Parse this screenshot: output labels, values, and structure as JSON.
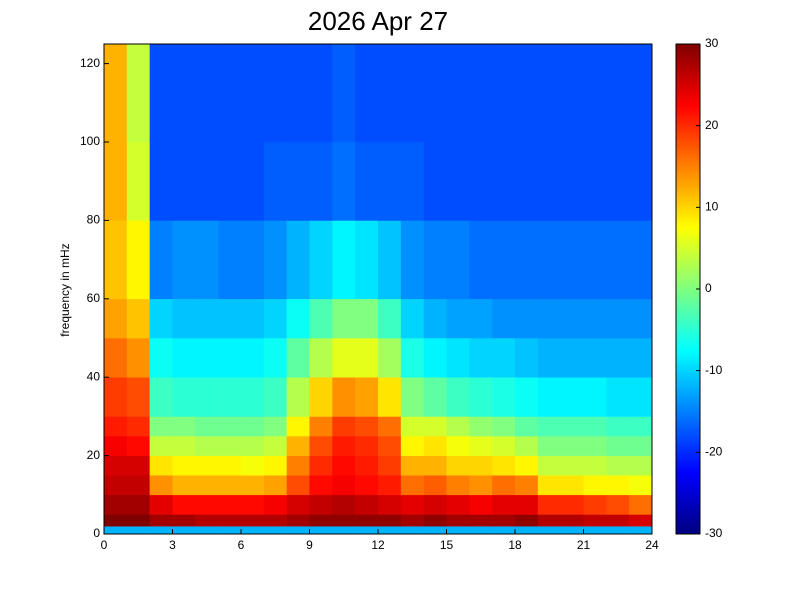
{
  "chart_data": {
    "type": "heatmap",
    "title": "2026 Apr 27",
    "ylabel": "frequency in mHz",
    "colormap": "jet",
    "x_bins": [
      0,
      1,
      2,
      3,
      4,
      5,
      6,
      7,
      8,
      9,
      10,
      11,
      12,
      13,
      14,
      15,
      16,
      17,
      18,
      19,
      20,
      21,
      22,
      23,
      24
    ],
    "y_bins": [
      0,
      2,
      5,
      10,
      15,
      20,
      25,
      30,
      40,
      50,
      60,
      80,
      100,
      125
    ],
    "values": [
      [
        -12,
        -12,
        -12,
        -12,
        -12,
        -12,
        -12,
        -12,
        -12,
        -12,
        -12,
        -12,
        -12,
        -12,
        -12,
        -12,
        -12,
        -12,
        -12,
        -12,
        -12,
        -12,
        -12,
        -12
      ],
      [
        30,
        30,
        28,
        28,
        27,
        27,
        27,
        27,
        28,
        29,
        29,
        29,
        29,
        28,
        29,
        28,
        28,
        28,
        29,
        27,
        27,
        26,
        26,
        25
      ],
      [
        28,
        28,
        24,
        22,
        22,
        22,
        22,
        23,
        25,
        26,
        27,
        26,
        25,
        24,
        25,
        24,
        23,
        24,
        24,
        20,
        20,
        19,
        18,
        16
      ],
      [
        26,
        26,
        14,
        12,
        12,
        12,
        12,
        13,
        18,
        22,
        23,
        22,
        21,
        16,
        17,
        15,
        14,
        16,
        15,
        9,
        9,
        8,
        8,
        7
      ],
      [
        25,
        25,
        9,
        8,
        8,
        8,
        7,
        8,
        15,
        20,
        22,
        21,
        19,
        12,
        12,
        10,
        10,
        9,
        8,
        4,
        4,
        4,
        3,
        3
      ],
      [
        23,
        22,
        4,
        4,
        3,
        3,
        3,
        4,
        12,
        18,
        21,
        20,
        18,
        8,
        9,
        7,
        6,
        5,
        3,
        0,
        0,
        0,
        -1,
        -1
      ],
      [
        21,
        20,
        0,
        0,
        -1,
        -1,
        -1,
        0,
        8,
        15,
        19,
        18,
        16,
        5,
        5,
        3,
        1,
        0,
        -2,
        -3,
        -3,
        -3,
        -4,
        -4
      ],
      [
        19,
        18,
        -4,
        -5,
        -5,
        -5,
        -5,
        -4,
        3,
        10,
        14,
        13,
        9,
        0,
        -2,
        -4,
        -5,
        -6,
        -7,
        -8,
        -8,
        -8,
        -9,
        -9
      ],
      [
        16,
        14,
        -7,
        -8,
        -8,
        -8,
        -8,
        -7,
        -2,
        3,
        6,
        6,
        2,
        -6,
        -8,
        -9,
        -10,
        -10,
        -11,
        -12,
        -12,
        -12,
        -12,
        -12
      ],
      [
        13,
        11,
        -10,
        -11,
        -11,
        -11,
        -11,
        -10,
        -7,
        -3,
        0,
        0,
        -4,
        -10,
        -12,
        -13,
        -13,
        -14,
        -14,
        -14,
        -14,
        -14,
        -14,
        -14
      ],
      [
        11,
        8,
        -15,
        -14,
        -14,
        -15,
        -15,
        -14,
        -12,
        -10,
        -8,
        -9,
        -11,
        -14,
        -15,
        -15,
        -16,
        -16,
        -16,
        -16,
        -16,
        -16,
        -16,
        -16
      ],
      [
        12,
        5,
        -18,
        -18,
        -18,
        -18,
        -18,
        -17,
        -17,
        -17,
        -16,
        -17,
        -17,
        -17,
        -18,
        -18,
        -18,
        -18,
        -18,
        -18,
        -18,
        -18,
        -18,
        -18
      ],
      [
        12,
        4,
        -18,
        -18,
        -18,
        -18,
        -18,
        -18,
        -18,
        -18,
        -17,
        -18,
        -18,
        -18,
        -18,
        -18,
        -18,
        -18,
        -18,
        -18,
        -18,
        -18,
        -18,
        -18
      ]
    ],
    "xlim": [
      0,
      24
    ],
    "xticks": [
      0,
      3,
      6,
      9,
      12,
      15,
      18,
      21,
      24
    ],
    "ylim": [
      0,
      125
    ],
    "yticks": [
      0,
      20,
      40,
      60,
      80,
      100,
      120
    ],
    "clim": [
      -30,
      30
    ],
    "cticks": [
      -30,
      -20,
      -10,
      0,
      10,
      20,
      30
    ]
  }
}
